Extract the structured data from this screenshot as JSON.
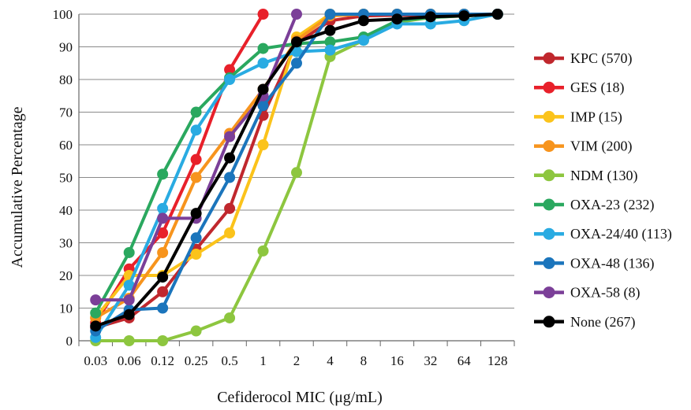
{
  "chart_data": {
    "type": "line",
    "title": "",
    "xlabel": "Cefiderocol MIC (μg/mL)",
    "ylabel": "Accumulative Percentage",
    "categories": [
      "0.03",
      "0.06",
      "0.12",
      "0.25",
      "0.5",
      "1",
      "2",
      "4",
      "8",
      "16",
      "32",
      "64",
      "128"
    ],
    "ylim": [
      0,
      100
    ],
    "yticks": [
      0,
      10,
      20,
      30,
      40,
      50,
      60,
      70,
      80,
      90,
      100
    ],
    "grid": "horizontal",
    "legend_position": "right",
    "series": [
      {
        "name": "KPC (570)",
        "color": "#c0272d",
        "values": [
          4,
          7,
          15,
          28,
          40.5,
          69,
          91,
          98,
          99.5,
          99.7,
          99.8,
          99.9,
          100
        ]
      },
      {
        "name": "GES (18)",
        "color": "#e8202a",
        "values": [
          5.5,
          22,
          33,
          55.5,
          83,
          100,
          null,
          null,
          null,
          null,
          null,
          null,
          null
        ]
      },
      {
        "name": "IMP (15)",
        "color": "#fbc31b",
        "values": [
          7,
          20,
          20,
          26.5,
          33,
          60,
          93,
          100,
          100,
          100,
          100,
          100,
          100
        ]
      },
      {
        "name": "VIM (200)",
        "color": "#f7941d",
        "values": [
          7,
          13,
          27,
          50,
          63.5,
          77,
          92,
          99.5,
          100,
          100,
          100,
          100,
          100
        ]
      },
      {
        "name": "NDM (130)",
        "color": "#8dc63f",
        "values": [
          0,
          0,
          0,
          3,
          7,
          27.5,
          51.5,
          87,
          92,
          97.5,
          99,
          99.5,
          100
        ]
      },
      {
        "name": "OXA-23 (232)",
        "color": "#2aa85f",
        "values": [
          8.5,
          27,
          51,
          70,
          80.5,
          89.5,
          91,
          91.5,
          93,
          98,
          99,
          99.5,
          100
        ]
      },
      {
        "name": "OXA-24/40 (113)",
        "color": "#29abe2",
        "values": [
          1,
          17,
          40.5,
          64.5,
          80,
          85,
          88.5,
          89,
          92,
          97,
          97,
          98,
          100
        ]
      },
      {
        "name": "OXA-48 (136)",
        "color": "#1b75bc",
        "values": [
          3,
          9.5,
          10,
          31.5,
          50,
          72,
          85,
          100,
          100,
          100,
          100,
          100,
          100
        ]
      },
      {
        "name": "OXA-58 (8)",
        "color": "#7b3f98",
        "values": [
          12.5,
          12.5,
          37.5,
          37.5,
          62.5,
          75,
          100,
          null,
          null,
          null,
          null,
          null,
          null
        ]
      },
      {
        "name": "None (267)",
        "color": "#000000",
        "values": [
          4.5,
          8,
          19.5,
          39,
          56,
          77,
          91.5,
          95,
          98,
          98.5,
          99.2,
          99.5,
          100
        ]
      }
    ]
  }
}
